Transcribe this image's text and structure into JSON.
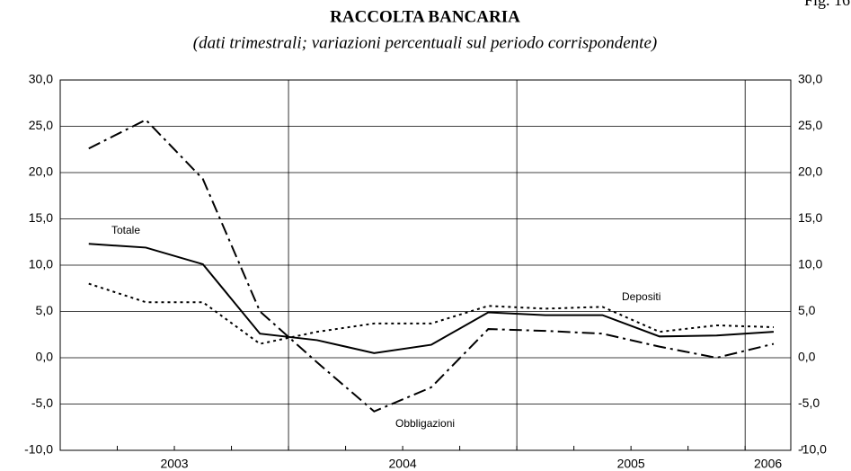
{
  "chart_data": {
    "type": "line",
    "fig_label": "Fig. 16",
    "title": "RACCOLTA BANCARIA",
    "subtitle": "(dati trimestrali; variazioni percentuali sul periodo corrispondente)",
    "x": [
      2003.125,
      2003.375,
      2003.625,
      2003.875,
      2004.125,
      2004.375,
      2004.625,
      2004.875,
      2005.125,
      2005.375,
      2005.625,
      2005.875,
      2006.125
    ],
    "xlim": [
      2003,
      2006.2
    ],
    "xticks": [
      {
        "value": 2003.5,
        "label": "2003"
      },
      {
        "value": 2004.5,
        "label": "2004"
      },
      {
        "value": 2005.5,
        "label": "2005"
      },
      {
        "value": 2006.1,
        "label": "2006"
      }
    ],
    "xgrid": [
      2004,
      2005,
      2006
    ],
    "ylim": [
      -10,
      30
    ],
    "yticks": [
      {
        "value": -10,
        "label": "-10,0"
      },
      {
        "value": -5,
        "label": "-5,0"
      },
      {
        "value": 0,
        "label": "0,0"
      },
      {
        "value": 5,
        "label": "5,0"
      },
      {
        "value": 10,
        "label": "10,0"
      },
      {
        "value": 15,
        "label": "15,0"
      },
      {
        "value": 20,
        "label": "20,0"
      },
      {
        "value": 25,
        "label": "25,0"
      },
      {
        "value": 30,
        "label": "30,0"
      }
    ],
    "grid": true,
    "series": [
      {
        "name": "Totale",
        "color": "#000000",
        "style": "solid",
        "values": [
          12.3,
          11.9,
          10.1,
          2.6,
          1.9,
          0.5,
          1.4,
          4.9,
          4.6,
          4.6,
          2.3,
          2.4,
          2.8
        ]
      },
      {
        "name": "Depositi",
        "color": "#000000",
        "style": "dotted",
        "values": [
          8.0,
          6.0,
          6.0,
          1.5,
          2.8,
          3.7,
          3.7,
          5.6,
          5.3,
          5.5,
          2.8,
          3.5,
          3.3
        ]
      },
      {
        "name": "Obbligazioni",
        "color": "#000000",
        "style": "dashdot",
        "values": [
          22.6,
          25.7,
          19.3,
          5.0,
          -0.5,
          -5.8,
          -3.2,
          3.1,
          2.9,
          2.6,
          1.2,
          0.0,
          1.5
        ]
      }
    ]
  }
}
